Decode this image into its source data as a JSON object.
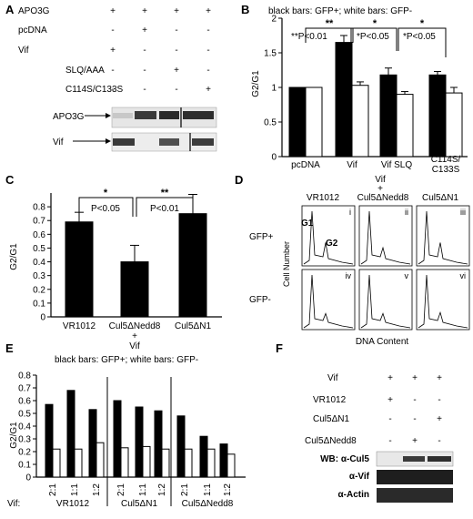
{
  "panels": {
    "A": {
      "letter": "A",
      "rows": [
        {
          "label": "APO3G",
          "marks": [
            "+",
            "+",
            "+",
            "+"
          ]
        },
        {
          "label": "pcDNA",
          "marks": [
            "-",
            "+",
            "-",
            "-"
          ]
        },
        {
          "label": "Vif",
          "marks": [
            "+",
            "-",
            "-",
            "-"
          ]
        },
        {
          "label": "SLQ/AAA",
          "marks": [
            "-",
            "-",
            "+",
            "-"
          ]
        },
        {
          "label": "C114S/C133S",
          "marks": [
            "-",
            "-",
            "-",
            "+"
          ]
        }
      ],
      "blots": [
        "APO3G",
        "Vif"
      ]
    },
    "B": {
      "letter": "B"
    },
    "C": {
      "letter": "C",
      "subcaption": "Vif"
    },
    "D": {
      "letter": "D",
      "header_line1": "Vif",
      "header_line2": "+",
      "columns": [
        "VR1012",
        "Cul5ΔNedd8",
        "Cul5ΔN1"
      ],
      "rows": [
        "GFP+",
        "GFP-"
      ],
      "roman": [
        "i",
        "ii",
        "iii",
        "iv",
        "v",
        "vi"
      ],
      "peak_labels": [
        "G1",
        "G2"
      ],
      "ylabel": "Cell Number",
      "xlabel": "DNA Content"
    },
    "E": {
      "letter": "E",
      "vif_label": "Vif:",
      "ratios": [
        "2:1",
        "1:1",
        "1:2",
        "2:1",
        "1:1",
        "1:2",
        "2:1",
        "1:1",
        "1:2"
      ],
      "groups": [
        "VR1012",
        "Cul5ΔN1",
        "Cul5ΔNedd8"
      ]
    },
    "F": {
      "letter": "F",
      "rows": [
        {
          "label": "Vif",
          "marks": [
            "+",
            "+",
            "+"
          ]
        },
        {
          "label": "VR1012",
          "marks": [
            "+",
            "-",
            "-"
          ]
        },
        {
          "label": "Cul5ΔN1",
          "marks": [
            "-",
            "-",
            "+"
          ]
        },
        {
          "label": "Cul5ΔNedd8",
          "marks": [
            "-",
            "+",
            "-"
          ]
        }
      ],
      "blots": [
        "WB: α-Cul5",
        "α-Vif",
        "α-Actin"
      ]
    }
  },
  "chart_data": [
    {
      "panel": "B",
      "type": "bar",
      "title": "black bars: GFP+;  white bars: GFP-",
      "ylabel": "G2/G1",
      "ylim": [
        0,
        2
      ],
      "yticks": [
        "0",
        "0.5",
        "1",
        "1.5",
        "2"
      ],
      "categories": [
        "pcDNA",
        "Vif",
        "Vif SLQ",
        "C114S/\nC133S"
      ],
      "series": [
        {
          "name": "GFP+",
          "color": "#000000",
          "values": [
            1.0,
            1.65,
            1.18,
            1.18
          ],
          "errors": [
            0,
            0.1,
            0.1,
            0.05
          ]
        },
        {
          "name": "GFP-",
          "color": "#ffffff",
          "values": [
            1.0,
            1.03,
            0.9,
            0.92
          ],
          "errors": [
            0,
            0.05,
            0.04,
            0.08
          ]
        }
      ],
      "annotations": [
        "**",
        "**P<0.01",
        "*",
        "*P<0.05",
        "*",
        "*P<0.05"
      ]
    },
    {
      "panel": "C",
      "type": "bar",
      "ylabel": "G2/G1",
      "ylim": [
        0,
        0.9
      ],
      "yticks": [
        "0",
        "0.1",
        "0.2",
        "0.3",
        "0.4",
        "0.5",
        "0.6",
        "0.7",
        "0.8"
      ],
      "categories": [
        "VR1012",
        "Cul5ΔNedd8",
        "Cul5ΔN1"
      ],
      "series": [
        {
          "color": "#000000",
          "values": [
            0.69,
            0.4,
            0.75
          ],
          "errors": [
            0.07,
            0.12,
            0.14
          ]
        }
      ],
      "annotations": [
        "*",
        "P<0.05",
        "**",
        "P<0.01",
        "+"
      ]
    },
    {
      "panel": "E",
      "type": "bar",
      "title": "black bars: GFP+;  white bars: GFP-",
      "ylabel": "G2/G1",
      "ylim": [
        0,
        0.8
      ],
      "yticks": [
        "0",
        "0.1",
        "0.2",
        "0.3",
        "0.4",
        "0.5",
        "0.6",
        "0.7",
        "0.8"
      ],
      "categories": [
        "2:1",
        "1:1",
        "1:2",
        "2:1",
        "1:1",
        "1:2",
        "2:1",
        "1:1",
        "1:2"
      ],
      "series": [
        {
          "name": "GFP+",
          "color": "#000000",
          "values": [
            0.57,
            0.68,
            0.53,
            0.6,
            0.55,
            0.52,
            0.48,
            0.32,
            0.26
          ]
        },
        {
          "name": "GFP-",
          "color": "#ffffff",
          "values": [
            0.22,
            0.22,
            0.27,
            0.23,
            0.24,
            0.22,
            0.22,
            0.22,
            0.18
          ]
        }
      ]
    }
  ]
}
